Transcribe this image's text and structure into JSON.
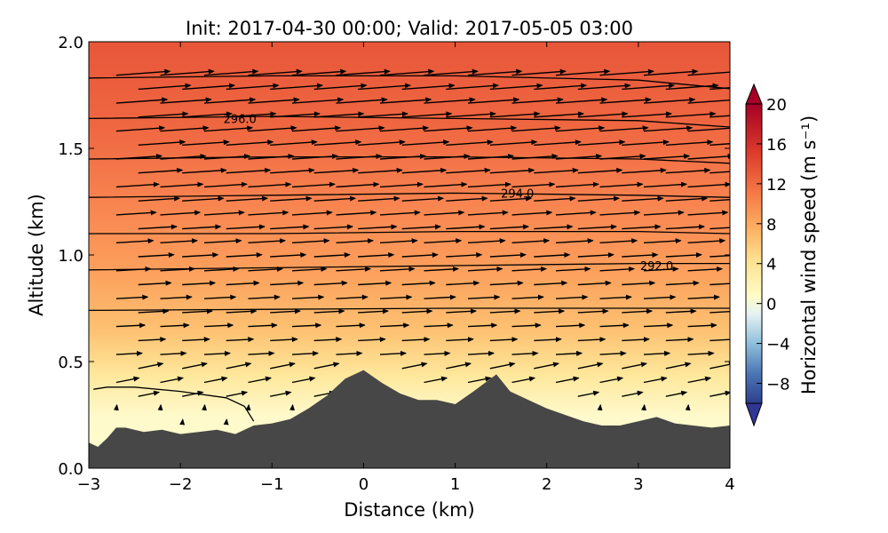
{
  "chart_data": {
    "type": "heatmap",
    "title": "Init: 2017-04-30 00:00; Valid: 2017-05-05 03:00",
    "xlabel": "Distance (km)",
    "ylabel": "Altitude (km)",
    "xlim": [
      -3,
      4
    ],
    "ylim": [
      0,
      2.0
    ],
    "x_ticks": [
      "−3",
      "−2",
      "−1",
      "0",
      "1",
      "2",
      "3",
      "4"
    ],
    "y_ticks": [
      "0.0",
      "0.5",
      "1.0",
      "1.5",
      "2.0"
    ],
    "colorbar": {
      "label": "Horizontal wind speed (m s⁻¹)",
      "min": -10,
      "max": 20,
      "ticks": [
        "20",
        "16",
        "12",
        "8",
        "4",
        "0",
        "−4",
        "−8"
      ],
      "extend": "both"
    },
    "terrain_profile": {
      "x": [
        -3.0,
        -2.9,
        -2.8,
        -2.7,
        -2.6,
        -2.4,
        -2.2,
        -2.0,
        -1.8,
        -1.6,
        -1.4,
        -1.2,
        -1.0,
        -0.8,
        -0.6,
        -0.4,
        -0.2,
        0.0,
        0.2,
        0.4,
        0.6,
        0.8,
        1.0,
        1.2,
        1.45,
        1.6,
        1.8,
        2.0,
        2.2,
        2.4,
        2.6,
        2.8,
        3.0,
        3.2,
        3.4,
        3.6,
        3.8,
        4.0
      ],
      "y": [
        0.12,
        0.1,
        0.14,
        0.19,
        0.19,
        0.17,
        0.18,
        0.16,
        0.17,
        0.18,
        0.16,
        0.2,
        0.21,
        0.23,
        0.28,
        0.34,
        0.42,
        0.46,
        0.4,
        0.35,
        0.32,
        0.32,
        0.3,
        0.36,
        0.44,
        0.36,
        0.32,
        0.28,
        0.25,
        0.22,
        0.2,
        0.2,
        0.22,
        0.24,
        0.21,
        0.2,
        0.19,
        0.2
      ]
    },
    "isentropes": [
      {
        "x": [
          -3.0,
          -1.0,
          1.0,
          3.0,
          4.0
        ],
        "y": [
          0.74,
          0.745,
          0.75,
          0.75,
          0.75
        ]
      },
      {
        "x": [
          -3.0,
          -1.0,
          1.0,
          3.0,
          4.0
        ],
        "y": [
          0.93,
          0.94,
          0.95,
          0.96,
          0.96
        ]
      },
      {
        "x": [
          -3.0,
          -1.0,
          1.0,
          3.0,
          4.0
        ],
        "y": [
          1.1,
          1.1,
          1.11,
          1.11,
          1.1
        ]
      },
      {
        "x": [
          -3.0,
          -1.0,
          1.0,
          3.0,
          4.0
        ],
        "y": [
          1.27,
          1.28,
          1.29,
          1.28,
          1.27
        ]
      },
      {
        "x": [
          -3.0,
          -1.0,
          1.0,
          3.0,
          4.0
        ],
        "y": [
          1.45,
          1.46,
          1.46,
          1.45,
          1.43
        ]
      },
      {
        "x": [
          -3.0,
          -1.0,
          1.0,
          3.0,
          4.0
        ],
        "y": [
          1.64,
          1.65,
          1.64,
          1.63,
          1.6
        ]
      },
      {
        "x": [
          -3.0,
          -1.0,
          1.0,
          3.0,
          4.0
        ],
        "y": [
          1.83,
          1.84,
          1.84,
          1.82,
          1.78
        ]
      },
      {
        "x": [
          -2.95,
          -2.8,
          -2.5,
          -2.0,
          -1.5,
          -1.3,
          -1.2
        ],
        "y": [
          0.37,
          0.38,
          0.38,
          0.36,
          0.33,
          0.29,
          0.22
        ]
      }
    ],
    "contour_labels": [
      {
        "text": "296.0",
        "x": -1.35,
        "y": 1.64
      },
      {
        "text": "294.0",
        "x": 1.68,
        "y": 1.29
      },
      {
        "text": "292.0",
        "x": 3.2,
        "y": 0.95
      }
    ]
  }
}
